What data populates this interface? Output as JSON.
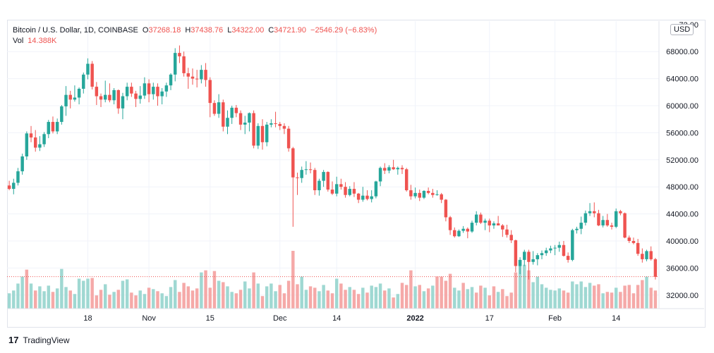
{
  "legend": {
    "symbol": "Bitcoin / U.S. Dollar, 1D, COINBASE",
    "o_label": "O",
    "o_value": "37268.18",
    "h_label": "H",
    "h_value": "37438.76",
    "l_label": "L",
    "l_value": "34322.00",
    "c_label": "C",
    "c_value": "34721.90",
    "change": "−2546.29 (−6.83%)",
    "vol_label": "Vol",
    "vol_value": "14.388K"
  },
  "price_axis": {
    "currency_badge": "USD",
    "partial_top_label": "72",
    "partial_top_suffix": "00"
  },
  "branding": {
    "logo": "17",
    "name": "TradingView"
  },
  "colors": {
    "up": "#26a69a",
    "down": "#ef5350",
    "up_volume": "#9fd8d2",
    "down_volume": "#f5a9a8",
    "grid": "#f0f3fa",
    "last_price_line": "#ef5350"
  },
  "chart_data": {
    "type": "candlestick",
    "instrument": "Bitcoin / U.S. Dollar",
    "interval": "1D",
    "exchange": "COINBASE",
    "ylim": [
      30000,
      72500
    ],
    "y_ticks": [
      32000,
      36000,
      40000,
      44000,
      48000,
      52000,
      56000,
      60000,
      64000,
      68000
    ],
    "y_tick_labels": [
      "32000.00",
      "36000.00",
      "40000.00",
      "44000.00",
      "48000.00",
      "52000.00",
      "56000.00",
      "60000.00",
      "64000.00",
      "68000.00"
    ],
    "x_ticks": [
      {
        "index": 18,
        "label": "18"
      },
      {
        "index": 32,
        "label": "Nov"
      },
      {
        "index": 46,
        "label": "15"
      },
      {
        "index": 62,
        "label": "Dec"
      },
      {
        "index": 75,
        "label": "14"
      },
      {
        "index": 93,
        "label": "2022"
      },
      {
        "index": 110,
        "label": "17"
      },
      {
        "index": 125,
        "label": "Feb"
      },
      {
        "index": 139,
        "label": "14"
      }
    ],
    "last_price": 34721.9,
    "ohlc": [
      [
        48200,
        48900,
        47500,
        47700
      ],
      [
        47700,
        49200,
        46900,
        48600
      ],
      [
        48600,
        50800,
        48200,
        50300
      ],
      [
        50300,
        52900,
        49800,
        52500
      ],
      [
        52500,
        56200,
        52000,
        55900
      ],
      [
        55900,
        57000,
        54600,
        55300
      ],
      [
        55300,
        56400,
        53200,
        53800
      ],
      [
        53800,
        55500,
        53300,
        54300
      ],
      [
        54300,
        56100,
        53900,
        55800
      ],
      [
        55800,
        57900,
        55200,
        57600
      ],
      [
        57600,
        58400,
        55900,
        56200
      ],
      [
        56200,
        58100,
        55800,
        57600
      ],
      [
        57600,
        60100,
        57200,
        59900
      ],
      [
        59900,
        62900,
        58500,
        61600
      ],
      [
        61600,
        62200,
        59600,
        60900
      ],
      [
        60900,
        63000,
        60600,
        61200
      ],
      [
        61200,
        62700,
        60200,
        62500
      ],
      [
        62500,
        64900,
        61800,
        64600
      ],
      [
        64600,
        67000,
        63900,
        66200
      ],
      [
        66200,
        66600,
        62400,
        62800
      ],
      [
        62800,
        63500,
        60100,
        61400
      ],
      [
        61400,
        61800,
        59800,
        60900
      ],
      [
        60900,
        63700,
        60500,
        61600
      ],
      [
        61600,
        63300,
        60500,
        60800
      ],
      [
        60800,
        62600,
        60200,
        62300
      ],
      [
        62300,
        62400,
        58800,
        59600
      ],
      [
        59600,
        61900,
        58000,
        61400
      ],
      [
        61400,
        63400,
        60800,
        62800
      ],
      [
        62800,
        63400,
        61300,
        61800
      ],
      [
        61800,
        62200,
        59800,
        61000
      ],
      [
        61000,
        62900,
        60300,
        61500
      ],
      [
        61500,
        64200,
        61000,
        63300
      ],
      [
        63300,
        63900,
        60500,
        61700
      ],
      [
        61700,
        63400,
        60900,
        62800
      ],
      [
        62800,
        63300,
        60000,
        61400
      ],
      [
        61400,
        62600,
        60200,
        62100
      ],
      [
        62100,
        63400,
        61300,
        63000
      ],
      [
        63000,
        64800,
        62300,
        64600
      ],
      [
        64600,
        68500,
        63600,
        67800
      ],
      [
        67800,
        68900,
        66300,
        67300
      ],
      [
        67300,
        68000,
        64300,
        64800
      ],
      [
        64800,
        65600,
        62500,
        64300
      ],
      [
        64300,
        65500,
        63100,
        64000
      ],
      [
        64000,
        65300,
        62700,
        63900
      ],
      [
        63900,
        66000,
        63300,
        65300
      ],
      [
        65300,
        66300,
        62800,
        63800
      ],
      [
        63800,
        64200,
        58300,
        60400
      ],
      [
        60400,
        60800,
        58500,
        58800
      ],
      [
        58800,
        61700,
        58200,
        60500
      ],
      [
        60500,
        60900,
        56200,
        56900
      ],
      [
        56900,
        59300,
        55800,
        58200
      ],
      [
        58200,
        60000,
        57300,
        59700
      ],
      [
        59700,
        60100,
        58300,
        58900
      ],
      [
        58900,
        59300,
        56400,
        57200
      ],
      [
        57200,
        58500,
        55800,
        57500
      ],
      [
        57500,
        59000,
        56200,
        58900
      ],
      [
        58900,
        59300,
        53700,
        54100
      ],
      [
        54100,
        57400,
        53600,
        57000
      ],
      [
        57000,
        58000,
        53500,
        54600
      ],
      [
        54600,
        57600,
        54000,
        57200
      ],
      [
        57200,
        58000,
        56800,
        57400
      ],
      [
        57400,
        59100,
        56800,
        57300
      ],
      [
        57300,
        57600,
        56400,
        57000
      ],
      [
        57000,
        57400,
        55800,
        56600
      ],
      [
        56600,
        57000,
        53200,
        53700
      ],
      [
        53700,
        53900,
        42100,
        49400
      ],
      [
        49400,
        50100,
        46800,
        49300
      ],
      [
        49300,
        51000,
        48600,
        50500
      ],
      [
        50500,
        51800,
        49800,
        50600
      ],
      [
        50600,
        51600,
        50000,
        50500
      ],
      [
        50500,
        50800,
        46800,
        47500
      ],
      [
        47500,
        49200,
        46700,
        48900
      ],
      [
        48900,
        50500,
        48000,
        50200
      ],
      [
        50200,
        50300,
        47300,
        47600
      ],
      [
        47600,
        48800,
        46800,
        47000
      ],
      [
        47000,
        49500,
        46600,
        48400
      ],
      [
        48400,
        49200,
        47600,
        48000
      ],
      [
        48000,
        48700,
        46400,
        46800
      ],
      [
        46800,
        48100,
        46600,
        47700
      ],
      [
        47700,
        48700,
        46500,
        47000
      ],
      [
        47000,
        47100,
        45600,
        46100
      ],
      [
        46100,
        48000,
        45800,
        46700
      ],
      [
        46700,
        47500,
        46000,
        46200
      ],
      [
        46200,
        47500,
        45700,
        46600
      ],
      [
        46600,
        48900,
        46300,
        48800
      ],
      [
        48800,
        51000,
        48100,
        50800
      ],
      [
        50800,
        51500,
        49900,
        50400
      ],
      [
        50400,
        51200,
        50000,
        50900
      ],
      [
        50900,
        52000,
        50500,
        50600
      ],
      [
        50600,
        51000,
        49800,
        50800
      ],
      [
        50800,
        51200,
        49900,
        50600
      ],
      [
        50600,
        50800,
        47300,
        47500
      ],
      [
        47500,
        48300,
        46100,
        46600
      ],
      [
        46600,
        47900,
        46300,
        47100
      ],
      [
        47100,
        47600,
        45900,
        46400
      ],
      [
        46400,
        47500,
        46200,
        47400
      ],
      [
        47400,
        47900,
        46900,
        47100
      ],
      [
        47100,
        47700,
        46400,
        46800
      ],
      [
        46800,
        47500,
        46700,
        46900
      ],
      [
        46900,
        47100,
        45600,
        46100
      ],
      [
        46100,
        46200,
        42900,
        43500
      ],
      [
        43500,
        43700,
        40900,
        41600
      ],
      [
        41600,
        42000,
        40500,
        40700
      ],
      [
        40700,
        41700,
        40600,
        41500
      ],
      [
        41500,
        42200,
        41200,
        41800
      ],
      [
        41800,
        42000,
        40400,
        41400
      ],
      [
        41400,
        43000,
        41200,
        42700
      ],
      [
        42700,
        44400,
        42300,
        43900
      ],
      [
        43900,
        44200,
        42500,
        42700
      ],
      [
        42700,
        43300,
        41600,
        43000
      ],
      [
        43000,
        43300,
        41300,
        42300
      ],
      [
        42300,
        42900,
        41800,
        42600
      ],
      [
        42600,
        43700,
        42300,
        42300
      ],
      [
        42300,
        42500,
        40600,
        41700
      ],
      [
        41700,
        42400,
        40500,
        40900
      ],
      [
        40900,
        41600,
        39700,
        40100
      ],
      [
        40100,
        40200,
        35400,
        36300
      ],
      [
        36300,
        37600,
        35100,
        37200
      ],
      [
        37200,
        38700,
        36300,
        38400
      ],
      [
        38400,
        38700,
        34300,
        36900
      ],
      [
        36900,
        38500,
        36500,
        37300
      ],
      [
        37300,
        38200,
        36400,
        37900
      ],
      [
        37900,
        38600,
        37300,
        38200
      ],
      [
        38200,
        39000,
        37800,
        38600
      ],
      [
        38600,
        39300,
        38200,
        38900
      ],
      [
        38900,
        39400,
        37900,
        39000
      ],
      [
        39000,
        39900,
        38400,
        39400
      ],
      [
        39400,
        40000,
        37700,
        37800
      ],
      [
        37800,
        38300,
        36800,
        37200
      ],
      [
        37200,
        41800,
        37000,
        41600
      ],
      [
        41600,
        42100,
        41100,
        41800
      ],
      [
        41800,
        43600,
        41000,
        42700
      ],
      [
        42700,
        44500,
        42300,
        44100
      ],
      [
        44100,
        45600,
        43700,
        44400
      ],
      [
        44400,
        45700,
        43500,
        44100
      ],
      [
        44100,
        44600,
        42200,
        42300
      ],
      [
        42300,
        43700,
        42000,
        43100
      ],
      [
        43100,
        44000,
        42100,
        42300
      ],
      [
        42300,
        42700,
        41700,
        42100
      ],
      [
        42100,
        44800,
        41900,
        44400
      ],
      [
        44400,
        44600,
        43800,
        44100
      ],
      [
        44100,
        44200,
        40400,
        40500
      ],
      [
        40500,
        40800,
        39700,
        40000
      ],
      [
        40000,
        40500,
        39500,
        39700
      ],
      [
        39700,
        40300,
        37800,
        38100
      ],
      [
        38100,
        38900,
        36800,
        37300
      ],
      [
        37300,
        38700,
        37000,
        38500
      ],
      [
        38500,
        39200,
        37100,
        37300
      ],
      [
        37300,
        37500,
        34300,
        34700
      ]
    ],
    "volume": [
      [
        2.2,
        1
      ],
      [
        2.6,
        1
      ],
      [
        3.6,
        1
      ],
      [
        4.6,
        1
      ],
      [
        5.6,
        0
      ],
      [
        3.6,
        1
      ],
      [
        2.6,
        0
      ],
      [
        3.2,
        1
      ],
      [
        2.5,
        1
      ],
      [
        3.3,
        1
      ],
      [
        2.4,
        0
      ],
      [
        2.9,
        1
      ],
      [
        5.7,
        1
      ],
      [
        3.1,
        1
      ],
      [
        2.6,
        0
      ],
      [
        2.1,
        1
      ],
      [
        4.3,
        1
      ],
      [
        4.0,
        1
      ],
      [
        4.3,
        1
      ],
      [
        4.4,
        0
      ],
      [
        1.9,
        0
      ],
      [
        2.7,
        0
      ],
      [
        3.5,
        1
      ],
      [
        2.0,
        0
      ],
      [
        2.4,
        1
      ],
      [
        2.7,
        0
      ],
      [
        4.0,
        1
      ],
      [
        4.2,
        1
      ],
      [
        2.3,
        0
      ],
      [
        1.9,
        0
      ],
      [
        2.6,
        1
      ],
      [
        2.1,
        1
      ],
      [
        3.0,
        0
      ],
      [
        2.8,
        1
      ],
      [
        2.5,
        0
      ],
      [
        2.2,
        1
      ],
      [
        1.8,
        1
      ],
      [
        3.1,
        1
      ],
      [
        4.1,
        1
      ],
      [
        2.4,
        0
      ],
      [
        3.7,
        0
      ],
      [
        3.2,
        0
      ],
      [
        2.6,
        0
      ],
      [
        2.9,
        0
      ],
      [
        5.2,
        1
      ],
      [
        5.5,
        0
      ],
      [
        3.0,
        0
      ],
      [
        5.4,
        0
      ],
      [
        4.0,
        1
      ],
      [
        3.8,
        0
      ],
      [
        3.2,
        1
      ],
      [
        2.4,
        1
      ],
      [
        2.2,
        0
      ],
      [
        2.7,
        0
      ],
      [
        3.9,
        1
      ],
      [
        2.9,
        1
      ],
      [
        5.2,
        0
      ],
      [
        3.6,
        1
      ],
      [
        1.8,
        0
      ],
      [
        3.2,
        1
      ],
      [
        3.6,
        1
      ],
      [
        2.5,
        1
      ],
      [
        3.4,
        0
      ],
      [
        2.2,
        0
      ],
      [
        4.0,
        0
      ],
      [
        8.3,
        0
      ],
      [
        3.5,
        0
      ],
      [
        4.6,
        1
      ],
      [
        2.7,
        1
      ],
      [
        3.2,
        0
      ],
      [
        3.0,
        0
      ],
      [
        2.5,
        1
      ],
      [
        3.4,
        1
      ],
      [
        2.6,
        0
      ],
      [
        2.2,
        0
      ],
      [
        4.3,
        1
      ],
      [
        3.6,
        0
      ],
      [
        2.7,
        0
      ],
      [
        3.1,
        1
      ],
      [
        2.7,
        0
      ],
      [
        2.1,
        0
      ],
      [
        3.0,
        1
      ],
      [
        2.3,
        0
      ],
      [
        3.3,
        1
      ],
      [
        3.1,
        1
      ],
      [
        3.6,
        1
      ],
      [
        2.6,
        0
      ],
      [
        2.9,
        1
      ],
      [
        1.6,
        0
      ],
      [
        2.1,
        1
      ],
      [
        3.7,
        0
      ],
      [
        3.4,
        0
      ],
      [
        5.5,
        0
      ],
      [
        3.2,
        1
      ],
      [
        3.4,
        0
      ],
      [
        2.5,
        1
      ],
      [
        2.9,
        0
      ],
      [
        3.3,
        1
      ],
      [
        4.6,
        0
      ],
      [
        4.6,
        0
      ],
      [
        4.0,
        0
      ],
      [
        5.0,
        0
      ],
      [
        3.0,
        1
      ],
      [
        2.6,
        1
      ],
      [
        3.7,
        0
      ],
      [
        2.8,
        1
      ],
      [
        3.1,
        1
      ],
      [
        2.3,
        0
      ],
      [
        3.3,
        0
      ],
      [
        3.0,
        1
      ],
      [
        1.9,
        0
      ],
      [
        3.2,
        0
      ],
      [
        2.4,
        1
      ],
      [
        2.8,
        0
      ],
      [
        1.8,
        0
      ],
      [
        2.3,
        0
      ],
      [
        5.2,
        0
      ],
      [
        7.0,
        1
      ],
      [
        6.3,
        1
      ],
      [
        5.5,
        0
      ],
      [
        3.8,
        1
      ],
      [
        4.6,
        1
      ],
      [
        3.5,
        1
      ],
      [
        3.0,
        1
      ],
      [
        2.7,
        1
      ],
      [
        2.6,
        1
      ],
      [
        2.9,
        1
      ],
      [
        2.6,
        0
      ],
      [
        2.3,
        0
      ],
      [
        3.9,
        1
      ],
      [
        3.5,
        1
      ],
      [
        3.9,
        1
      ],
      [
        3.1,
        1
      ],
      [
        3.7,
        1
      ],
      [
        3.3,
        0
      ],
      [
        3.5,
        0
      ],
      [
        2.2,
        1
      ],
      [
        2.4,
        0
      ],
      [
        2.3,
        0
      ],
      [
        3.0,
        1
      ],
      [
        2.4,
        0
      ],
      [
        3.3,
        0
      ],
      [
        3.4,
        0
      ],
      [
        2.2,
        0
      ],
      [
        3.4,
        0
      ],
      [
        4.1,
        0
      ],
      [
        4.6,
        1
      ],
      [
        3.0,
        0
      ],
      [
        2.6,
        0
      ]
    ]
  }
}
